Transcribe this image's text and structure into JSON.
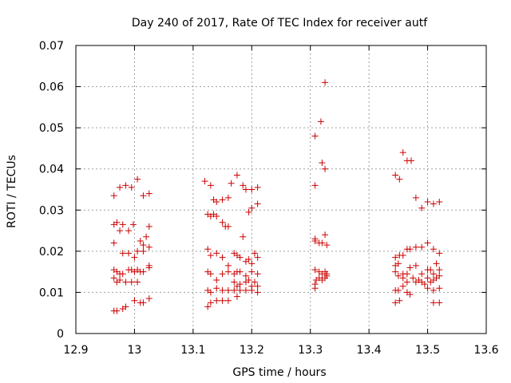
{
  "chart_data": {
    "type": "scatter",
    "title": "Day 240 of 2017, Rate Of TEC Index for receiver autf",
    "xlabel": "GPS time / hours",
    "ylabel": "ROTI / TECUs",
    "xlim": [
      12.9,
      13.6
    ],
    "ylim": [
      0,
      0.07
    ],
    "xticks": [
      12.9,
      13.0,
      13.1,
      13.2,
      13.3,
      13.4,
      13.5,
      13.6
    ],
    "xtick_labels": [
      "12.9",
      "13",
      "13.1",
      "13.2",
      "13.3",
      "13.4",
      "13.5",
      "13.6"
    ],
    "yticks": [
      0,
      0.01,
      0.02,
      0.03,
      0.04,
      0.05,
      0.06,
      0.07
    ],
    "ytick_labels": [
      "0",
      "0.01",
      "0.02",
      "0.03",
      "0.04",
      "0.05",
      "0.06",
      "0.07"
    ],
    "grid": true,
    "marker": "+",
    "color": "#cc0000",
    "series": [
      {
        "name": "ROTI",
        "points": [
          [
            12.965,
            0.0335
          ],
          [
            12.975,
            0.0355
          ],
          [
            12.985,
            0.036
          ],
          [
            12.995,
            0.0355
          ],
          [
            13.005,
            0.0375
          ],
          [
            13.015,
            0.0335
          ],
          [
            13.025,
            0.034
          ],
          [
            12.965,
            0.0265
          ],
          [
            12.97,
            0.027
          ],
          [
            12.975,
            0.025
          ],
          [
            12.98,
            0.0265
          ],
          [
            12.99,
            0.025
          ],
          [
            12.998,
            0.0265
          ],
          [
            13.01,
            0.0225
          ],
          [
            13.015,
            0.0215
          ],
          [
            13.02,
            0.0235
          ],
          [
            13.025,
            0.026
          ],
          [
            13.025,
            0.021
          ],
          [
            12.965,
            0.022
          ],
          [
            12.98,
            0.0195
          ],
          [
            12.99,
            0.0195
          ],
          [
            13.0,
            0.0185
          ],
          [
            13.005,
            0.02
          ],
          [
            13.015,
            0.02
          ],
          [
            12.965,
            0.0155
          ],
          [
            12.97,
            0.015
          ],
          [
            12.975,
            0.0145
          ],
          [
            12.98,
            0.0145
          ],
          [
            12.99,
            0.0155
          ],
          [
            12.995,
            0.0155
          ],
          [
            13.0,
            0.015
          ],
          [
            13.005,
            0.0155
          ],
          [
            13.01,
            0.015
          ],
          [
            13.015,
            0.015
          ],
          [
            13.025,
            0.016
          ],
          [
            13.025,
            0.0165
          ],
          [
            12.965,
            0.0135
          ],
          [
            12.97,
            0.0125
          ],
          [
            12.975,
            0.013
          ],
          [
            12.985,
            0.0125
          ],
          [
            12.995,
            0.0125
          ],
          [
            13.005,
            0.0125
          ],
          [
            12.965,
            0.0055
          ],
          [
            12.97,
            0.0055
          ],
          [
            12.98,
            0.006
          ],
          [
            12.985,
            0.0065
          ],
          [
            13.0,
            0.008
          ],
          [
            13.01,
            0.0075
          ],
          [
            13.015,
            0.0075
          ],
          [
            13.025,
            0.0085
          ],
          [
            13.12,
            0.037
          ],
          [
            13.13,
            0.036
          ],
          [
            13.135,
            0.0325
          ],
          [
            13.14,
            0.032
          ],
          [
            13.15,
            0.0325
          ],
          [
            13.16,
            0.033
          ],
          [
            13.165,
            0.0365
          ],
          [
            13.175,
            0.0385
          ],
          [
            13.185,
            0.036
          ],
          [
            13.19,
            0.035
          ],
          [
            13.2,
            0.035
          ],
          [
            13.21,
            0.0355
          ],
          [
            13.21,
            0.0315
          ],
          [
            13.195,
            0.0295
          ],
          [
            13.2,
            0.0305
          ],
          [
            13.125,
            0.029
          ],
          [
            13.13,
            0.0285
          ],
          [
            13.135,
            0.029
          ],
          [
            13.14,
            0.0285
          ],
          [
            13.15,
            0.027
          ],
          [
            13.155,
            0.026
          ],
          [
            13.16,
            0.026
          ],
          [
            13.185,
            0.0235
          ],
          [
            13.125,
            0.0205
          ],
          [
            13.13,
            0.019
          ],
          [
            13.14,
            0.0195
          ],
          [
            13.15,
            0.0185
          ],
          [
            13.16,
            0.0165
          ],
          [
            13.17,
            0.0195
          ],
          [
            13.175,
            0.019
          ],
          [
            13.18,
            0.0185
          ],
          [
            13.19,
            0.0175
          ],
          [
            13.195,
            0.018
          ],
          [
            13.2,
            0.017
          ],
          [
            13.205,
            0.0195
          ],
          [
            13.21,
            0.0185
          ],
          [
            13.125,
            0.015
          ],
          [
            13.13,
            0.0145
          ],
          [
            13.14,
            0.013
          ],
          [
            13.15,
            0.0145
          ],
          [
            13.16,
            0.015
          ],
          [
            13.17,
            0.0145
          ],
          [
            13.175,
            0.015
          ],
          [
            13.18,
            0.015
          ],
          [
            13.19,
            0.014
          ],
          [
            13.2,
            0.015
          ],
          [
            13.21,
            0.0145
          ],
          [
            13.17,
            0.0125
          ],
          [
            13.175,
            0.0115
          ],
          [
            13.18,
            0.012
          ],
          [
            13.19,
            0.0125
          ],
          [
            13.195,
            0.013
          ],
          [
            13.2,
            0.0115
          ],
          [
            13.205,
            0.0125
          ],
          [
            13.21,
            0.0115
          ],
          [
            13.125,
            0.0105
          ],
          [
            13.13,
            0.01
          ],
          [
            13.14,
            0.011
          ],
          [
            13.15,
            0.0105
          ],
          [
            13.16,
            0.0105
          ],
          [
            13.17,
            0.0105
          ],
          [
            13.18,
            0.0105
          ],
          [
            13.19,
            0.0105
          ],
          [
            13.2,
            0.0105
          ],
          [
            13.21,
            0.01
          ],
          [
            13.125,
            0.0065
          ],
          [
            13.13,
            0.0075
          ],
          [
            13.14,
            0.008
          ],
          [
            13.15,
            0.008
          ],
          [
            13.16,
            0.008
          ],
          [
            13.175,
            0.009
          ],
          [
            13.308,
            0.048
          ],
          [
            13.318,
            0.0515
          ],
          [
            13.325,
            0.061
          ],
          [
            13.308,
            0.036
          ],
          [
            13.32,
            0.0415
          ],
          [
            13.325,
            0.04
          ],
          [
            13.308,
            0.0225
          ],
          [
            13.308,
            0.023
          ],
          [
            13.315,
            0.022
          ],
          [
            13.32,
            0.022
          ],
          [
            13.325,
            0.024
          ],
          [
            13.328,
            0.0215
          ],
          [
            13.308,
            0.0155
          ],
          [
            13.315,
            0.015
          ],
          [
            13.32,
            0.0145
          ],
          [
            13.325,
            0.015
          ],
          [
            13.328,
            0.014
          ],
          [
            13.31,
            0.013
          ],
          [
            13.315,
            0.0135
          ],
          [
            13.32,
            0.013
          ],
          [
            13.308,
            0.012
          ],
          [
            13.325,
            0.0135
          ],
          [
            13.308,
            0.011
          ],
          [
            13.328,
            0.0145
          ],
          [
            13.445,
            0.0385
          ],
          [
            13.452,
            0.0375
          ],
          [
            13.458,
            0.044
          ],
          [
            13.465,
            0.042
          ],
          [
            13.472,
            0.042
          ],
          [
            13.48,
            0.033
          ],
          [
            13.49,
            0.0305
          ],
          [
            13.5,
            0.032
          ],
          [
            13.51,
            0.0315
          ],
          [
            13.52,
            0.032
          ],
          [
            13.445,
            0.0185
          ],
          [
            13.452,
            0.019
          ],
          [
            13.458,
            0.019
          ],
          [
            13.465,
            0.0205
          ],
          [
            13.47,
            0.0205
          ],
          [
            13.48,
            0.021
          ],
          [
            13.49,
            0.021
          ],
          [
            13.5,
            0.022
          ],
          [
            13.51,
            0.0205
          ],
          [
            13.52,
            0.0195
          ],
          [
            13.515,
            0.017
          ],
          [
            13.505,
            0.0155
          ],
          [
            13.445,
            0.0165
          ],
          [
            13.45,
            0.017
          ],
          [
            13.458,
            0.0145
          ],
          [
            13.465,
            0.0145
          ],
          [
            13.47,
            0.016
          ],
          [
            13.48,
            0.0165
          ],
          [
            13.49,
            0.0145
          ],
          [
            13.5,
            0.0155
          ],
          [
            13.51,
            0.0145
          ],
          [
            13.52,
            0.0155
          ],
          [
            13.445,
            0.015
          ],
          [
            13.45,
            0.014
          ],
          [
            13.458,
            0.0135
          ],
          [
            13.465,
            0.0125
          ],
          [
            13.475,
            0.0135
          ],
          [
            13.48,
            0.0125
          ],
          [
            13.485,
            0.013
          ],
          [
            13.49,
            0.0125
          ],
          [
            13.495,
            0.012
          ],
          [
            13.5,
            0.0135
          ],
          [
            13.505,
            0.0125
          ],
          [
            13.51,
            0.013
          ],
          [
            13.515,
            0.0135
          ],
          [
            13.52,
            0.014
          ],
          [
            13.445,
            0.0105
          ],
          [
            13.45,
            0.0105
          ],
          [
            13.458,
            0.0115
          ],
          [
            13.465,
            0.01
          ],
          [
            13.47,
            0.0095
          ],
          [
            13.5,
            0.011
          ],
          [
            13.51,
            0.0105
          ],
          [
            13.52,
            0.011
          ],
          [
            13.445,
            0.0075
          ],
          [
            13.452,
            0.008
          ],
          [
            13.51,
            0.0075
          ],
          [
            13.52,
            0.0075
          ]
        ]
      }
    ]
  }
}
